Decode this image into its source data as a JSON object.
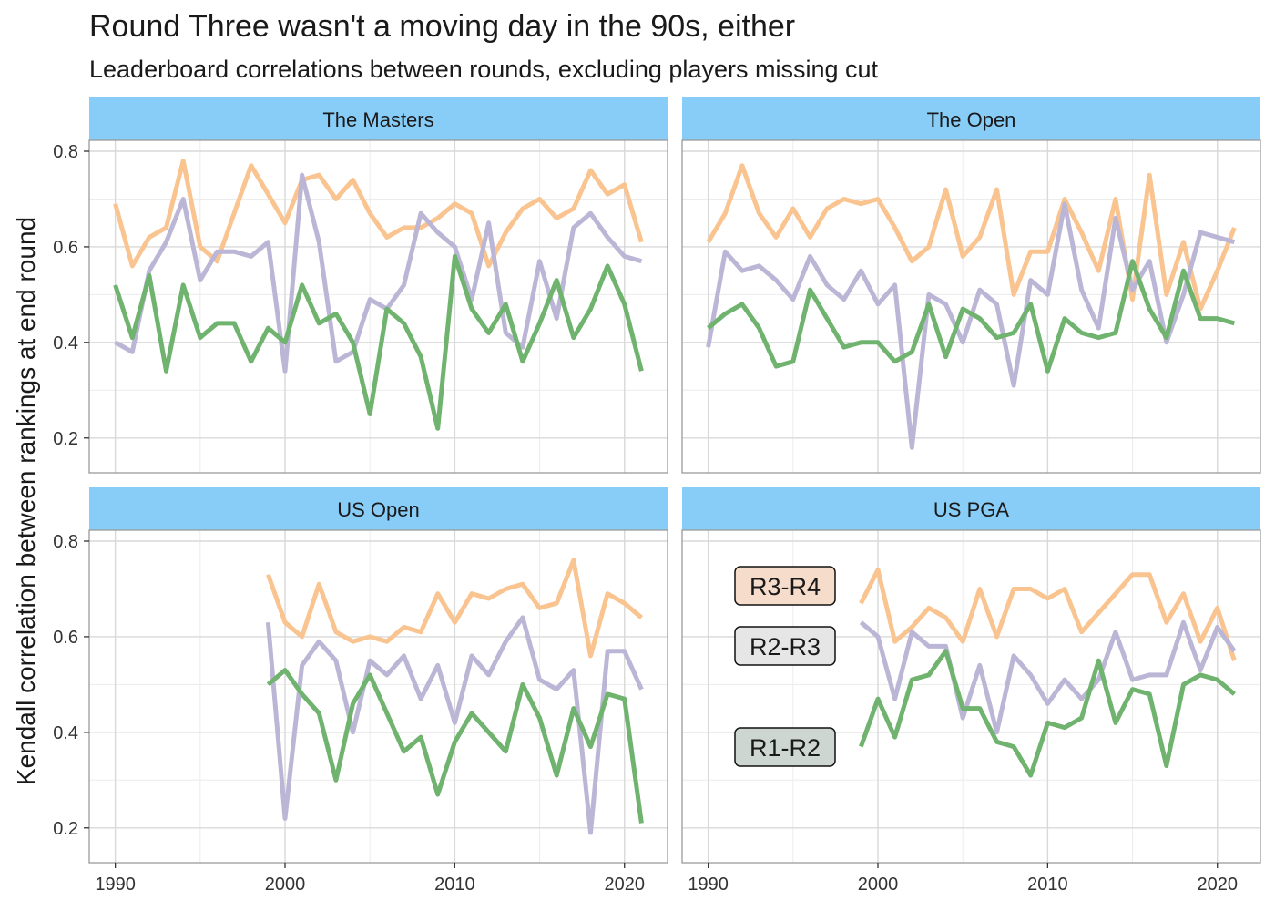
{
  "chart_data": {
    "type": "line",
    "title": "Round Three wasn't a moving day in the 90s, either",
    "subtitle": "Leaderboard correlations between rounds, excluding players missing cut",
    "ylabel": "Kendall correlation between rankings at end round",
    "xlabel": "",
    "xlim": [
      1989,
      2022
    ],
    "ylim": [
      0.15,
      0.8
    ],
    "x_ticks": [
      1990,
      2000,
      2010,
      2020
    ],
    "y_ticks": [
      0.2,
      0.4,
      0.6,
      0.8
    ],
    "y_tick_labels": [
      "0.2",
      "0.4",
      "0.6",
      "0.8"
    ],
    "grid": true,
    "legend_placement": "inside US PGA panel, left",
    "colors": {
      "R3-R4": "#f9c490",
      "R2-R3": "#bcb6d6",
      "R1-R2": "#6fb36f",
      "strip": "#87cdf8",
      "legend_R3-R4": "#f6dccb",
      "legend_R2-R3": "#e6e6e6",
      "legend_R1-R2": "#cdd6d0"
    },
    "panels": [
      {
        "name": "The Masters",
        "series": [
          {
            "name": "R3-R4",
            "x": [
              1990,
              1991,
              1992,
              1993,
              1994,
              1995,
              1996,
              1997,
              1998,
              1999,
              2000,
              2001,
              2002,
              2003,
              2004,
              2005,
              2006,
              2007,
              2008,
              2009,
              2010,
              2011,
              2012,
              2013,
              2014,
              2015,
              2016,
              2017,
              2018,
              2019,
              2020,
              2021
            ],
            "y": [
              0.69,
              0.56,
              0.62,
              0.64,
              0.78,
              0.6,
              0.57,
              0.67,
              0.77,
              0.71,
              0.65,
              0.74,
              0.75,
              0.7,
              0.74,
              0.67,
              0.62,
              0.64,
              0.64,
              0.66,
              0.69,
              0.67,
              0.56,
              0.63,
              0.68,
              0.7,
              0.66,
              0.68,
              0.76,
              0.71,
              0.73,
              0.61
            ]
          },
          {
            "name": "R2-R3",
            "x": [
              1990,
              1991,
              1992,
              1993,
              1994,
              1995,
              1996,
              1997,
              1998,
              1999,
              2000,
              2001,
              2002,
              2003,
              2004,
              2005,
              2006,
              2007,
              2008,
              2009,
              2010,
              2011,
              2012,
              2013,
              2014,
              2015,
              2016,
              2017,
              2018,
              2019,
              2020,
              2021
            ],
            "y": [
              0.4,
              0.38,
              0.55,
              0.61,
              0.7,
              0.53,
              0.59,
              0.59,
              0.58,
              0.61,
              0.34,
              0.75,
              0.61,
              0.36,
              0.38,
              0.49,
              0.47,
              0.52,
              0.67,
              0.63,
              0.6,
              0.49,
              0.65,
              0.42,
              0.39,
              0.57,
              0.45,
              0.64,
              0.67,
              0.62,
              0.58,
              0.57
            ]
          },
          {
            "name": "R1-R2",
            "x": [
              1990,
              1991,
              1992,
              1993,
              1994,
              1995,
              1996,
              1997,
              1998,
              1999,
              2000,
              2001,
              2002,
              2003,
              2004,
              2005,
              2006,
              2007,
              2008,
              2009,
              2010,
              2011,
              2012,
              2013,
              2014,
              2015,
              2016,
              2017,
              2018,
              2019,
              2020,
              2021
            ],
            "y": [
              0.52,
              0.41,
              0.54,
              0.34,
              0.52,
              0.41,
              0.44,
              0.44,
              0.36,
              0.43,
              0.4,
              0.52,
              0.44,
              0.46,
              0.4,
              0.25,
              0.47,
              0.44,
              0.37,
              0.22,
              0.58,
              0.47,
              0.42,
              0.48,
              0.36,
              0.44,
              0.53,
              0.41,
              0.47,
              0.56,
              0.48,
              0.34
            ]
          }
        ]
      },
      {
        "name": "The Open",
        "series": [
          {
            "name": "R3-R4",
            "x": [
              1990,
              1991,
              1992,
              1993,
              1994,
              1995,
              1996,
              1997,
              1998,
              1999,
              2000,
              2001,
              2002,
              2003,
              2004,
              2005,
              2006,
              2007,
              2008,
              2009,
              2010,
              2011,
              2012,
              2013,
              2014,
              2015,
              2016,
              2017,
              2018,
              2019,
              2020,
              2021
            ],
            "y": [
              0.61,
              0.67,
              0.77,
              0.67,
              0.62,
              0.68,
              0.62,
              0.68,
              0.7,
              0.69,
              0.7,
              0.64,
              0.57,
              0.6,
              0.72,
              0.58,
              0.62,
              0.72,
              0.5,
              0.59,
              0.59,
              0.7,
              0.63,
              0.55,
              0.7,
              0.49,
              0.75,
              0.5,
              0.61,
              0.47,
              0.55,
              0.64
            ]
          },
          {
            "name": "R2-R3",
            "x": [
              1990,
              1991,
              1992,
              1993,
              1994,
              1995,
              1996,
              1997,
              1998,
              1999,
              2000,
              2001,
              2002,
              2003,
              2004,
              2005,
              2006,
              2007,
              2008,
              2009,
              2010,
              2011,
              2012,
              2013,
              2014,
              2015,
              2016,
              2017,
              2018,
              2019,
              2020,
              2021
            ],
            "y": [
              0.39,
              0.59,
              0.55,
              0.56,
              0.53,
              0.49,
              0.58,
              0.52,
              0.49,
              0.55,
              0.48,
              0.52,
              0.18,
              0.5,
              0.48,
              0.4,
              0.51,
              0.48,
              0.31,
              0.53,
              0.5,
              0.69,
              0.51,
              0.43,
              0.66,
              0.51,
              0.57,
              0.4,
              0.5,
              0.63,
              0.62,
              0.61
            ]
          },
          {
            "name": "R1-R2",
            "x": [
              1990,
              1991,
              1992,
              1993,
              1994,
              1995,
              1996,
              1997,
              1998,
              1999,
              2000,
              2001,
              2002,
              2003,
              2004,
              2005,
              2006,
              2007,
              2008,
              2009,
              2010,
              2011,
              2012,
              2013,
              2014,
              2015,
              2016,
              2017,
              2018,
              2019,
              2020,
              2021
            ],
            "y": [
              0.43,
              0.46,
              0.48,
              0.43,
              0.35,
              0.36,
              0.51,
              0.45,
              0.39,
              0.4,
              0.4,
              0.36,
              0.38,
              0.48,
              0.37,
              0.47,
              0.45,
              0.41,
              0.42,
              0.48,
              0.34,
              0.45,
              0.42,
              0.41,
              0.42,
              0.57,
              0.47,
              0.41,
              0.55,
              0.45,
              0.45,
              0.44
            ]
          }
        ]
      },
      {
        "name": "US Open",
        "series": [
          {
            "name": "R3-R4",
            "x": [
              1999,
              2000,
              2001,
              2002,
              2003,
              2004,
              2005,
              2006,
              2007,
              2008,
              2009,
              2010,
              2011,
              2012,
              2013,
              2014,
              2015,
              2016,
              2017,
              2018,
              2019,
              2020,
              2021
            ],
            "y": [
              0.73,
              0.63,
              0.6,
              0.71,
              0.61,
              0.59,
              0.6,
              0.59,
              0.62,
              0.61,
              0.69,
              0.63,
              0.69,
              0.68,
              0.7,
              0.71,
              0.66,
              0.67,
              0.76,
              0.56,
              0.69,
              0.67,
              0.64
            ]
          },
          {
            "name": "R2-R3",
            "x": [
              1999,
              2000,
              2001,
              2002,
              2003,
              2004,
              2005,
              2006,
              2007,
              2008,
              2009,
              2010,
              2011,
              2012,
              2013,
              2014,
              2015,
              2016,
              2017,
              2018,
              2019,
              2020,
              2021
            ],
            "y": [
              0.63,
              0.22,
              0.54,
              0.59,
              0.55,
              0.4,
              0.55,
              0.52,
              0.56,
              0.47,
              0.54,
              0.42,
              0.56,
              0.52,
              0.59,
              0.64,
              0.51,
              0.49,
              0.53,
              0.19,
              0.57,
              0.57,
              0.49
            ]
          },
          {
            "name": "R1-R2",
            "x": [
              1999,
              2000,
              2001,
              2002,
              2003,
              2004,
              2005,
              2006,
              2007,
              2008,
              2009,
              2010,
              2011,
              2012,
              2013,
              2014,
              2015,
              2016,
              2017,
              2018,
              2019,
              2020,
              2021
            ],
            "y": [
              0.5,
              0.53,
              0.48,
              0.44,
              0.3,
              0.46,
              0.52,
              0.44,
              0.36,
              0.39,
              0.27,
              0.38,
              0.44,
              0.4,
              0.36,
              0.5,
              0.43,
              0.31,
              0.45,
              0.37,
              0.48,
              0.47,
              0.21
            ]
          }
        ]
      },
      {
        "name": "US PGA",
        "series": [
          {
            "name": "R3-R4",
            "x": [
              1999,
              2000,
              2001,
              2002,
              2003,
              2004,
              2005,
              2006,
              2007,
              2008,
              2009,
              2010,
              2011,
              2012,
              2013,
              2014,
              2015,
              2016,
              2017,
              2018,
              2019,
              2020,
              2021
            ],
            "y": [
              0.67,
              0.74,
              0.59,
              0.62,
              0.66,
              0.64,
              0.59,
              0.7,
              0.6,
              0.7,
              0.7,
              0.68,
              0.7,
              0.61,
              0.65,
              0.69,
              0.73,
              0.73,
              0.63,
              0.69,
              0.59,
              0.66,
              0.55
            ]
          },
          {
            "name": "R2-R3",
            "x": [
              1999,
              2000,
              2001,
              2002,
              2003,
              2004,
              2005,
              2006,
              2007,
              2008,
              2009,
              2010,
              2011,
              2012,
              2013,
              2014,
              2015,
              2016,
              2017,
              2018,
              2019,
              2020,
              2021
            ],
            "y": [
              0.63,
              0.6,
              0.47,
              0.61,
              0.58,
              0.58,
              0.43,
              0.54,
              0.4,
              0.56,
              0.52,
              0.46,
              0.51,
              0.47,
              0.51,
              0.61,
              0.51,
              0.52,
              0.52,
              0.63,
              0.53,
              0.62,
              0.57
            ]
          },
          {
            "name": "R1-R2",
            "x": [
              1999,
              2000,
              2001,
              2002,
              2003,
              2004,
              2005,
              2006,
              2007,
              2008,
              2009,
              2010,
              2011,
              2012,
              2013,
              2014,
              2015,
              2016,
              2017,
              2018,
              2019,
              2020,
              2021
            ],
            "y": [
              0.37,
              0.47,
              0.39,
              0.51,
              0.52,
              0.57,
              0.45,
              0.45,
              0.38,
              0.37,
              0.31,
              0.42,
              0.41,
              0.43,
              0.55,
              0.42,
              0.49,
              0.48,
              0.33,
              0.5,
              0.52,
              0.51,
              0.48
            ]
          }
        ]
      }
    ],
    "legend": [
      {
        "label": "R3-R4",
        "series": "R3-R4"
      },
      {
        "label": "R2-R3",
        "series": "R2-R3"
      },
      {
        "label": "R1-R2",
        "series": "R1-R2"
      }
    ]
  }
}
